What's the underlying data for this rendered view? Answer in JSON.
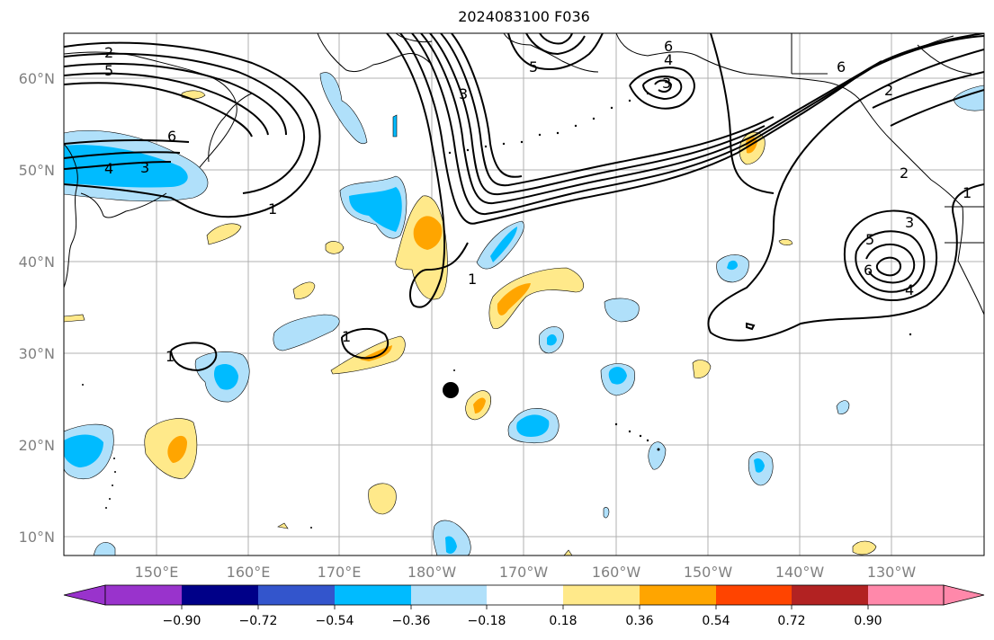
{
  "title": "2024083100 F036",
  "map": {
    "lat_labels": [
      "60°N",
      "50°N",
      "40°N",
      "30°N",
      "20°N",
      "10°N"
    ],
    "lon_labels": [
      "150°E",
      "160°E",
      "170°E",
      "180°W",
      "170°W",
      "160°W",
      "150°W",
      "140°W",
      "130°W"
    ],
    "contour_labels": [
      "2",
      "5",
      "6",
      "4",
      "3",
      "1",
      "6",
      "5",
      "4",
      "3",
      "6",
      "2",
      "3",
      "5",
      "6",
      "4",
      "1",
      "1",
      "1",
      "1",
      "2",
      "3"
    ],
    "marker": "storm-center-dot"
  },
  "colorbar": {
    "ticks": [
      "−0.90",
      "−0.72",
      "−0.54",
      "−0.36",
      "−0.18",
      "0.18",
      "0.36",
      "0.54",
      "0.72",
      "0.90"
    ],
    "colors": [
      "#9933cc",
      "#000088",
      "#3355cc",
      "#00bbff",
      "#b0e0fa",
      "#ffffff",
      "#ffe98a",
      "#ffa500",
      "#ff4400",
      "#b22222",
      "#ff88aa"
    ]
  },
  "colors": {
    "light_blue": "#b0e0fa",
    "blue": "#00bbff",
    "light_yellow": "#ffe98a",
    "orange": "#ffa500",
    "grid": "#b0b0b0"
  }
}
